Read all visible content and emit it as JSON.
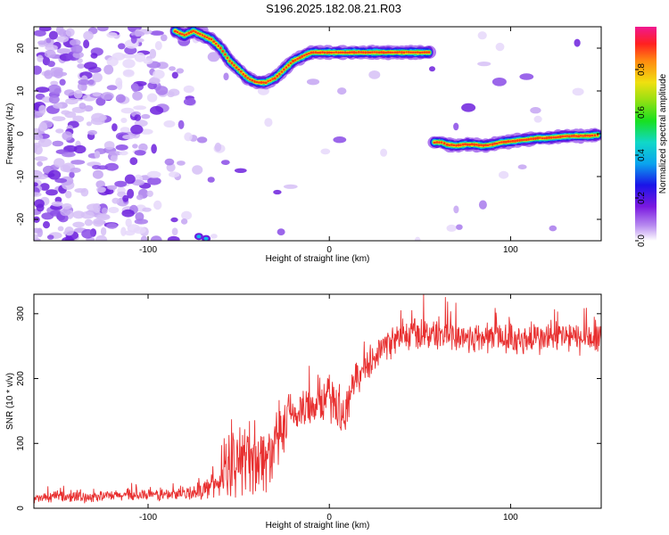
{
  "title": "S196.2025.182.08.21.R03",
  "chart_data": [
    {
      "type": "heatmap",
      "xlabel": "Height of straight line (km)",
      "ylabel": "Frequency (Hz)",
      "xlim": [
        -163,
        150
      ],
      "ylim": [
        -25,
        25
      ],
      "xticks": [
        -100,
        0,
        100
      ],
      "yticks": [
        -20,
        -10,
        0,
        10,
        20
      ],
      "colorbar": {
        "label": "Normalized spectral amplitude",
        "ticks": [
          0.0,
          0.2,
          0.4,
          0.6,
          0.8
        ],
        "range": [
          0,
          1
        ]
      },
      "upper_track": [
        [
          -85,
          24
        ],
        [
          -80,
          23
        ],
        [
          -75,
          24
        ],
        [
          -70,
          23
        ],
        [
          -65,
          22
        ],
        [
          -60,
          20
        ],
        [
          -55,
          17
        ],
        [
          -50,
          15
        ],
        [
          -45,
          13
        ],
        [
          -40,
          12
        ],
        [
          -35,
          12
        ],
        [
          -30,
          13
        ],
        [
          -25,
          15
        ],
        [
          -20,
          17
        ],
        [
          -15,
          18
        ],
        [
          -10,
          19
        ],
        [
          -5,
          19
        ],
        [
          0,
          19
        ],
        [
          5,
          19
        ],
        [
          10,
          19
        ],
        [
          15,
          19
        ],
        [
          20,
          19
        ],
        [
          25,
          19
        ],
        [
          30,
          19
        ],
        [
          35,
          19
        ],
        [
          40,
          19
        ],
        [
          45,
          19
        ],
        [
          50,
          19
        ],
        [
          55,
          19
        ]
      ],
      "lower_track": [
        [
          58,
          -2
        ],
        [
          62,
          -2
        ],
        [
          65,
          -2.5
        ],
        [
          70,
          -2.8
        ],
        [
          75,
          -2.5
        ],
        [
          80,
          -2.5
        ],
        [
          85,
          -2.8
        ],
        [
          90,
          -2.5
        ],
        [
          95,
          -2
        ],
        [
          100,
          -1.8
        ],
        [
          105,
          -1.5
        ],
        [
          110,
          -1.3
        ],
        [
          115,
          -1
        ],
        [
          120,
          -1
        ],
        [
          125,
          -0.8
        ],
        [
          130,
          -0.6
        ],
        [
          135,
          -0.5
        ],
        [
          140,
          -0.5
        ],
        [
          145,
          -0.4
        ],
        [
          148,
          -0.3
        ]
      ],
      "bottom_blobs": [
        [
          -72,
          -24
        ],
        [
          -68,
          -24.5
        ]
      ]
    },
    {
      "type": "line",
      "xlabel": "Height of straight line (km)",
      "ylabel": "SNR (10 * v/v)",
      "xlim": [
        -163,
        150
      ],
      "ylim": [
        0,
        330
      ],
      "xticks": [
        -100,
        0,
        100
      ],
      "yticks": [
        0,
        100,
        200,
        300
      ],
      "series": [
        {
          "color": "#e83030",
          "x": [
            -163,
            -150,
            -140,
            -130,
            -120,
            -110,
            -100,
            -90,
            -80,
            -75,
            -70,
            -65,
            -60,
            -55,
            -50,
            -45,
            -40,
            -35,
            -30,
            -25,
            -20,
            -15,
            -10,
            -5,
            0,
            5,
            8,
            10,
            12,
            15,
            20,
            25,
            30,
            35,
            40,
            45,
            50,
            55,
            60,
            65,
            70,
            80,
            90,
            100,
            110,
            120,
            130,
            140,
            150
          ],
          "y": [
            15,
            18,
            17,
            18,
            19,
            20,
            20,
            21,
            22,
            25,
            28,
            35,
            42,
            55,
            70,
            85,
            80,
            75,
            95,
            120,
            145,
            150,
            160,
            165,
            170,
            155,
            130,
            160,
            185,
            200,
            215,
            235,
            250,
            258,
            262,
            268,
            270,
            268,
            270,
            268,
            265,
            262,
            265,
            262,
            260,
            262,
            265,
            260,
            262
          ],
          "noise": [
            8,
            10,
            10,
            10,
            10,
            10,
            10,
            12,
            12,
            14,
            16,
            22,
            30,
            45,
            60,
            70,
            70,
            60,
            55,
            50,
            45,
            45,
            40,
            40,
            45,
            40,
            30,
            35,
            35,
            30,
            25,
            25,
            25,
            30,
            30,
            30,
            30,
            30,
            30,
            30,
            30,
            30,
            30,
            30,
            30,
            30,
            30,
            30,
            30
          ]
        }
      ]
    }
  ]
}
